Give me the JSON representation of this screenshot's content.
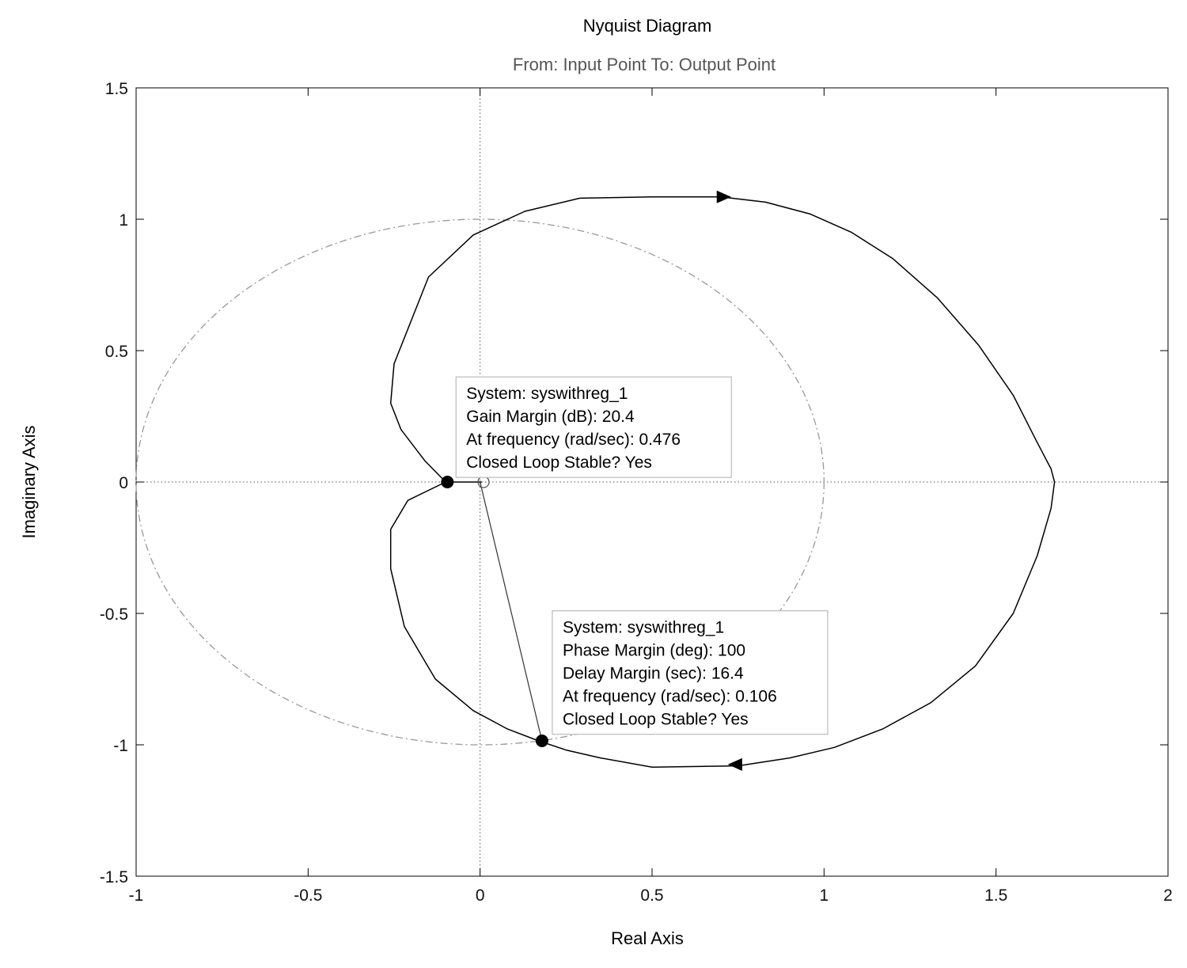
{
  "chart_data": {
    "type": "line",
    "title": "Nyquist Diagram",
    "subtitle": "From: Input Point  To: Output Point",
    "xlabel": "Real Axis",
    "ylabel": "Imaginary Axis",
    "xlim": [
      -1,
      2
    ],
    "ylim": [
      -1.5,
      1.5
    ],
    "xticks": [
      "-1",
      "-0.5",
      "0",
      "0.5",
      "1",
      "1.5",
      "2"
    ],
    "yticks": [
      "1.5",
      "1",
      "0.5",
      "0",
      "-0.5",
      "-1",
      "-1.5"
    ],
    "xtick_values": [
      -1,
      -0.5,
      0,
      0.5,
      1,
      1.5,
      2
    ],
    "ytick_values": [
      1.5,
      1,
      0.5,
      0,
      -0.5,
      -1,
      -1.5
    ],
    "grid": false,
    "unit_circle": {
      "center": [
        0,
        0
      ],
      "radius": 1,
      "style": "dash-dot",
      "color": "#999999"
    },
    "series": [
      {
        "color": "#000000",
        "x": [
          0.005,
          -0.1,
          -0.16,
          -0.23,
          -0.26,
          -0.25,
          -0.15,
          -0.02,
          0.13,
          0.29,
          0.5,
          0.7,
          0.83,
          0.96,
          1.08,
          1.2,
          1.33,
          1.45,
          1.55,
          1.62,
          1.66,
          1.67,
          1.66,
          1.62,
          1.55,
          1.44,
          1.31,
          1.17,
          1.03,
          0.9,
          0.75,
          0.5,
          0.35,
          0.25,
          0.17,
          0.08,
          -0.02,
          -0.13,
          -0.22,
          -0.26,
          -0.26,
          -0.21,
          -0.1,
          0.005
        ],
        "y": [
          0.0,
          0.0,
          0.08,
          0.2,
          0.3,
          0.45,
          0.78,
          0.94,
          1.03,
          1.08,
          1.085,
          1.085,
          1.065,
          1.02,
          0.95,
          0.85,
          0.7,
          0.52,
          0.33,
          0.15,
          0.05,
          0.0,
          -0.1,
          -0.28,
          -0.5,
          -0.7,
          -0.84,
          -0.94,
          -1.01,
          -1.05,
          -1.08,
          -1.085,
          -1.05,
          -1.02,
          -0.985,
          -0.94,
          -0.87,
          -0.75,
          -0.55,
          -0.33,
          -0.18,
          -0.07,
          0.0,
          0.0
        ]
      }
    ],
    "direction_arrows": [
      {
        "x": 0.7,
        "y": 1.085,
        "dx": 1,
        "dy": 0
      },
      {
        "x": 0.75,
        "y": -1.075,
        "dx": -1,
        "dy": 0
      }
    ],
    "markers": [
      {
        "x": -0.095,
        "y": 0.0,
        "fill": "filled"
      },
      {
        "x": 0.18,
        "y": -0.985,
        "fill": "filled"
      },
      {
        "x": 0.01,
        "y": 0.0,
        "fill": "open"
      }
    ],
    "phase_margin_line": {
      "from": [
        0.0,
        0.0
      ],
      "to": [
        0.18,
        -0.985
      ]
    },
    "datatips": [
      {
        "anchor": {
          "x": -0.07,
          "y": 0.4
        },
        "lines": [
          "System: syswithreg_1",
          "Gain Margin (dB): 20.4",
          "At frequency (rad/sec): 0.476",
          "Closed Loop Stable? Yes"
        ]
      },
      {
        "anchor": {
          "x": 0.21,
          "y": -0.49
        },
        "lines": [
          "System: syswithreg_1",
          "Phase Margin (deg): 100",
          "Delay Margin (sec): 16.4",
          "At frequency (rad/sec): 0.106",
          "Closed Loop Stable? Yes"
        ]
      }
    ]
  }
}
